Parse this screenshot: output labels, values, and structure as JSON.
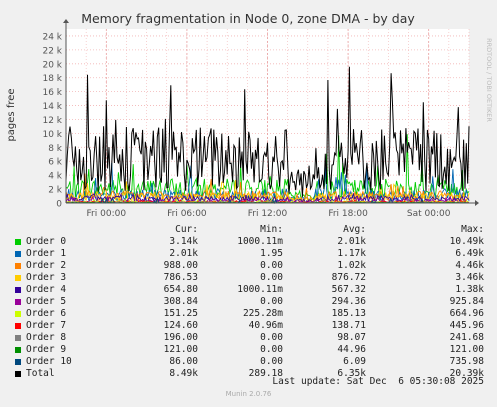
{
  "chart_data": {
    "type": "line",
    "title": "Memory fragmentation in Node 0, zone DMA - by day",
    "ylabel": "pages free",
    "ylim": [
      0,
      25000
    ],
    "yticks": [
      0,
      2000,
      4000,
      6000,
      8000,
      10000,
      12000,
      14000,
      16000,
      18000,
      20000,
      22000,
      24000
    ],
    "ytick_labels": [
      "0",
      "2 k",
      "4 k",
      "6 k",
      "8 k",
      "10 k",
      "12 k",
      "14 k",
      "16 k",
      "18 k",
      "20 k",
      "22 k",
      "24 k"
    ],
    "xtick_labels": [
      "Fri 00:00",
      "Fri 06:00",
      "Fri 12:00",
      "Fri 18:00",
      "Sat 00:00"
    ],
    "grid": true,
    "side_label": "RRDTOOL / TOBI OETIKER",
    "columns": [
      "Cur:",
      "Min:",
      "Avg:",
      "Max:"
    ],
    "series": [
      {
        "name": "Order 0",
        "color": "#00cc00",
        "cur": "3.14k",
        "min": "1000.11m",
        "avg": "2.01k",
        "max": "10.49k",
        "approx_level": 2000,
        "approx_peak": 10490
      },
      {
        "name": "Order 1",
        "color": "#0066b3",
        "cur": "2.01k",
        "min": "1.95",
        "avg": "1.17k",
        "max": "6.49k",
        "approx_level": 1170,
        "approx_peak": 6490
      },
      {
        "name": "Order 2",
        "color": "#ff8000",
        "cur": "988.00",
        "min": "0.00",
        "avg": "1.02k",
        "max": "4.46k",
        "approx_level": 1020,
        "approx_peak": 4460
      },
      {
        "name": "Order 3",
        "color": "#ffcc00",
        "cur": "786.53",
        "min": "0.00",
        "avg": "876.72",
        "max": "3.46k",
        "approx_level": 877,
        "approx_peak": 3460
      },
      {
        "name": "Order 4",
        "color": "#330099",
        "cur": "654.80",
        "min": "1000.11m",
        "avg": "567.32",
        "max": "1.38k",
        "approx_level": 567,
        "approx_peak": 1380
      },
      {
        "name": "Order 5",
        "color": "#990099",
        "cur": "308.84",
        "min": "0.00",
        "avg": "294.36",
        "max": "925.84",
        "approx_level": 294,
        "approx_peak": 926
      },
      {
        "name": "Order 6",
        "color": "#ccff00",
        "cur": "151.25",
        "min": "225.28m",
        "avg": "185.13",
        "max": "664.96",
        "approx_level": 185,
        "approx_peak": 665
      },
      {
        "name": "Order 7",
        "color": "#ff0000",
        "cur": "124.60",
        "min": "40.96m",
        "avg": "138.71",
        "max": "445.96",
        "approx_level": 139,
        "approx_peak": 446
      },
      {
        "name": "Order 8",
        "color": "#808080",
        "cur": "196.00",
        "min": "0.00",
        "avg": "98.07",
        "max": "241.68",
        "approx_level": 98,
        "approx_peak": 242
      },
      {
        "name": "Order 9",
        "color": "#008f00",
        "cur": "121.00",
        "min": "0.00",
        "avg": "44.96",
        "max": "121.00",
        "approx_level": 45,
        "approx_peak": 121
      },
      {
        "name": "Order 10",
        "color": "#00487d",
        "cur": "86.00",
        "min": "0.00",
        "avg": "6.09",
        "max": "735.98",
        "approx_level": 6,
        "approx_peak": 736
      },
      {
        "name": "Total",
        "color": "#000000",
        "cur": "8.49k",
        "min": "289.18",
        "avg": "6.35k",
        "max": "20.39k",
        "approx_level": 6350,
        "approx_peak": 20390
      }
    ],
    "last_update": "Last update: Sat Dec  6 05:30:08 2025",
    "footer": "Munin 2.0.76"
  }
}
